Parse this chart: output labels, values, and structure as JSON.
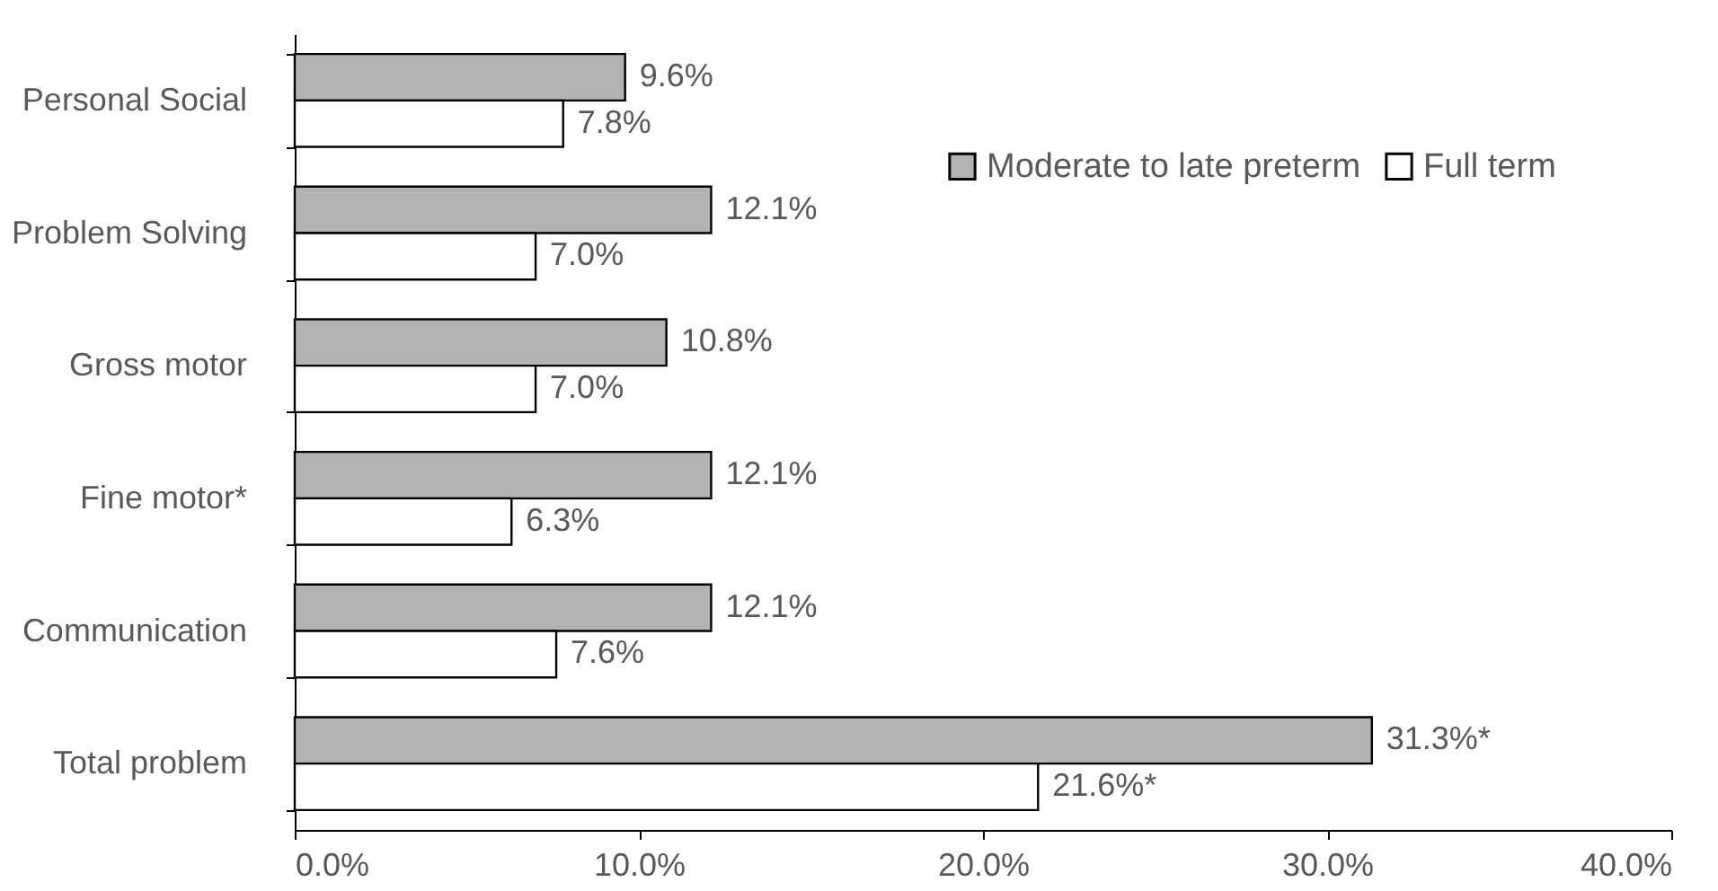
{
  "chart_data": {
    "type": "bar",
    "orientation": "horizontal",
    "categories": [
      "Personal Social",
      "Problem Solving",
      "Gross motor",
      "Fine motor*",
      "Communication",
      "Total problem"
    ],
    "series": [
      {
        "name": "Moderate to late preterm",
        "color": "#b3b3b3",
        "values": [
          9.6,
          12.1,
          10.8,
          12.1,
          12.1,
          31.3
        ],
        "value_labels": [
          "9.6%",
          "12.1%",
          "10.8%",
          "12.1%",
          "12.1%",
          "31.3%*"
        ]
      },
      {
        "name": "Full term",
        "color": "#ffffff",
        "values": [
          7.8,
          7.0,
          7.0,
          6.3,
          7.6,
          21.6
        ],
        "value_labels": [
          "7.8%",
          "7.0%",
          "7.0%",
          "6.3%",
          "7.6%",
          "21.6%*"
        ]
      }
    ],
    "xlim": [
      0,
      40
    ],
    "xticks": [
      {
        "value": 0,
        "label": "0.0%"
      },
      {
        "value": 10,
        "label": "10.0%"
      },
      {
        "value": 20,
        "label": "20.0%"
      },
      {
        "value": 30,
        "label": "30.0%"
      },
      {
        "value": 40,
        "label": "40.0%"
      }
    ],
    "legend": "top right"
  }
}
